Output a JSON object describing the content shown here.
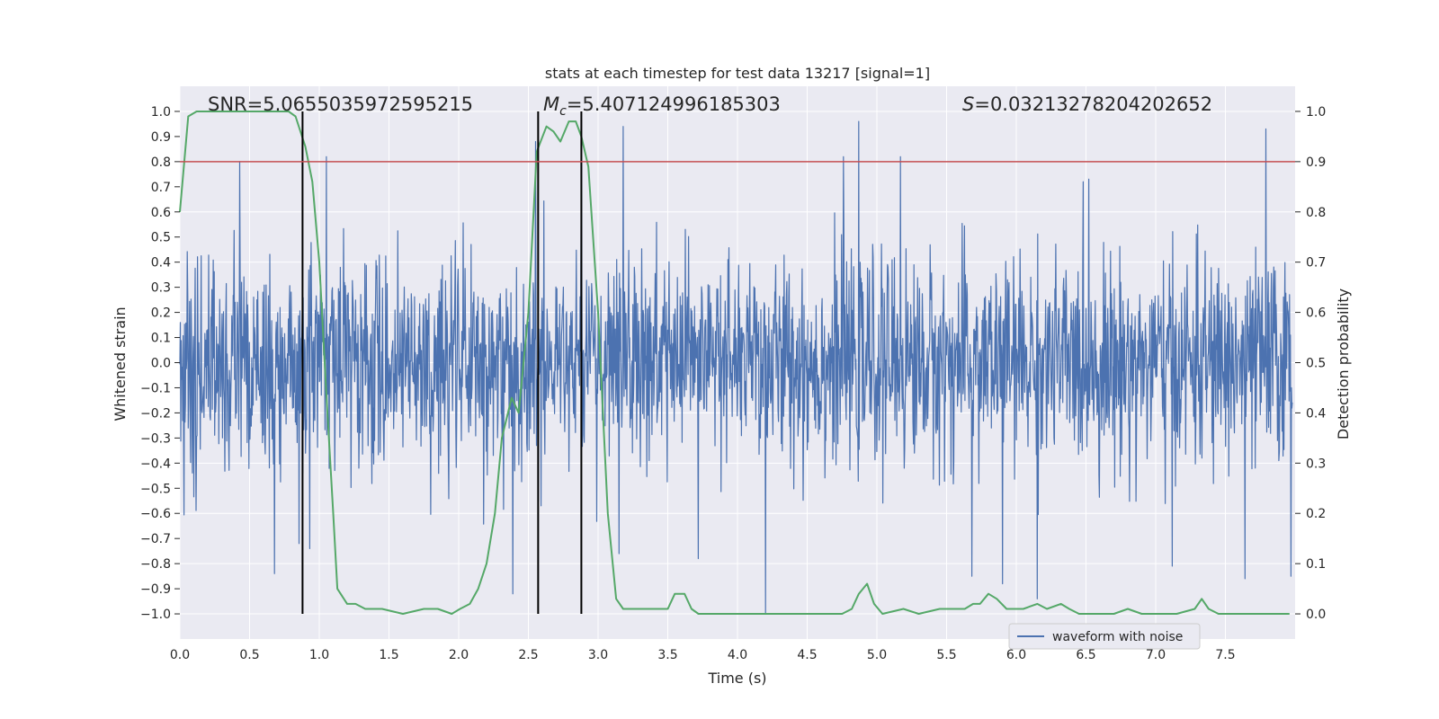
{
  "chart_data": {
    "type": "line",
    "title": "stats at each timestep for test data 13217 [signal=1]",
    "xlabel": "Time (s)",
    "ylabel_left": "Whitened strain",
    "ylabel_right": "Detection probability",
    "xlim": [
      0.0,
      8.0
    ],
    "ylim_left": [
      -1.1,
      1.1
    ],
    "ylim_right": [
      -0.05,
      1.05
    ],
    "x_ticks": [
      "0.0",
      "0.5",
      "1.0",
      "1.5",
      "2.0",
      "2.5",
      "3.0",
      "3.5",
      "4.0",
      "4.5",
      "5.0",
      "5.5",
      "6.0",
      "6.5",
      "7.0",
      "7.5"
    ],
    "y_ticks_left": [
      "1.0",
      "0.9",
      "0.8",
      "0.7",
      "0.6",
      "0.5",
      "0.4",
      "0.3",
      "0.2",
      "0.1",
      "0.0",
      "−0.1",
      "−0.2",
      "−0.3",
      "−0.4",
      "−0.5",
      "−0.6",
      "−0.7",
      "−0.8",
      "−0.9",
      "−1.0"
    ],
    "y_ticks_right": [
      "1.0",
      "0.9",
      "0.8",
      "0.7",
      "0.6",
      "0.5",
      "0.4",
      "0.3",
      "0.2",
      "0.1",
      "0.0"
    ],
    "grid": true,
    "legend": {
      "position": "lower-right",
      "entries": [
        "waveform with noise"
      ]
    },
    "annotations": {
      "snr": "SNR=5.0655035972595215",
      "mc_symbol": "M",
      "mc_sub": "c",
      "mc_value": "=5.407124996185303",
      "s_symbol": "S",
      "s_value": "=0.03213278204202652"
    },
    "threshold": {
      "axis": "right",
      "value": 0.9,
      "color": "#c44e52"
    },
    "vertical_lines": [
      0.88,
      2.57,
      2.88
    ],
    "series": [
      {
        "name": "waveform with noise",
        "axis": "left",
        "color": "#4c72b0",
        "description": "dense noisy whitened strain, amplitude envelope roughly ±0.5 with spikes up to ±1.0",
        "spikes": [
          {
            "x": 0.43,
            "y": 0.8
          },
          {
            "x": 1.05,
            "y": 0.82
          },
          {
            "x": 0.93,
            "y": -0.74
          },
          {
            "x": 0.68,
            "y": -0.84
          },
          {
            "x": 2.39,
            "y": -0.92
          },
          {
            "x": 2.55,
            "y": 0.88
          },
          {
            "x": 2.88,
            "y": 0.97
          },
          {
            "x": 3.15,
            "y": -0.76
          },
          {
            "x": 3.18,
            "y": 0.94
          },
          {
            "x": 3.72,
            "y": -0.78
          },
          {
            "x": 4.2,
            "y": -1.0
          },
          {
            "x": 4.76,
            "y": 0.82
          },
          {
            "x": 4.87,
            "y": 0.96
          },
          {
            "x": 5.17,
            "y": 0.82
          },
          {
            "x": 5.68,
            "y": -0.85
          },
          {
            "x": 5.9,
            "y": -0.88
          },
          {
            "x": 6.15,
            "y": -0.94
          },
          {
            "x": 6.52,
            "y": 0.73
          },
          {
            "x": 7.12,
            "y": -0.81
          },
          {
            "x": 7.64,
            "y": 1.0
          },
          {
            "x": 7.79,
            "y": 0.93
          },
          {
            "x": 7.64,
            "y": -0.86
          },
          {
            "x": 7.97,
            "y": -0.85
          }
        ]
      },
      {
        "name": "",
        "axis": "right",
        "color": "#55a868",
        "x": [
          0.0,
          0.06,
          0.12,
          0.25,
          0.4,
          0.55,
          0.7,
          0.78,
          0.83,
          0.9,
          0.95,
          1.0,
          1.05,
          1.1,
          1.13,
          1.2,
          1.26,
          1.33,
          1.45,
          1.6,
          1.75,
          1.85,
          1.95,
          2.01,
          2.08,
          2.14,
          2.2,
          2.26,
          2.31,
          2.38,
          2.43,
          2.5,
          2.56,
          2.63,
          2.68,
          2.73,
          2.79,
          2.84,
          2.88,
          2.93,
          3.0,
          3.07,
          3.13,
          3.18,
          3.25,
          3.32,
          3.4,
          3.5,
          3.55,
          3.62,
          3.67,
          3.72,
          3.85,
          4.0,
          4.3,
          4.6,
          4.75,
          4.82,
          4.87,
          4.93,
          4.98,
          5.04,
          5.19,
          5.3,
          5.45,
          5.63,
          5.69,
          5.74,
          5.8,
          5.86,
          5.93,
          6.05,
          6.15,
          6.22,
          6.32,
          6.38,
          6.45,
          6.55,
          6.7,
          6.8,
          6.9,
          7.0,
          7.15,
          7.28,
          7.33,
          7.38,
          7.45,
          7.6,
          7.75,
          7.85,
          7.96
        ],
        "y": [
          0.8,
          0.99,
          1.0,
          1.0,
          1.0,
          1.0,
          1.0,
          1.0,
          0.99,
          0.93,
          0.86,
          0.7,
          0.44,
          0.2,
          0.05,
          0.02,
          0.02,
          0.01,
          0.01,
          0.0,
          0.01,
          0.01,
          0.0,
          0.01,
          0.02,
          0.05,
          0.1,
          0.2,
          0.35,
          0.43,
          0.4,
          0.6,
          0.92,
          0.97,
          0.96,
          0.94,
          0.98,
          0.98,
          0.95,
          0.89,
          0.6,
          0.2,
          0.03,
          0.01,
          0.01,
          0.01,
          0.01,
          0.01,
          0.04,
          0.04,
          0.01,
          0.0,
          0.0,
          0.0,
          0.0,
          0.0,
          0.0,
          0.01,
          0.04,
          0.06,
          0.02,
          0.0,
          0.01,
          0.0,
          0.01,
          0.01,
          0.02,
          0.02,
          0.04,
          0.03,
          0.01,
          0.01,
          0.02,
          0.01,
          0.02,
          0.01,
          0.0,
          0.0,
          0.0,
          0.01,
          0.0,
          0.0,
          0.0,
          0.01,
          0.03,
          0.01,
          0.0,
          0.0,
          0.0,
          0.0,
          0.0
        ]
      }
    ]
  }
}
